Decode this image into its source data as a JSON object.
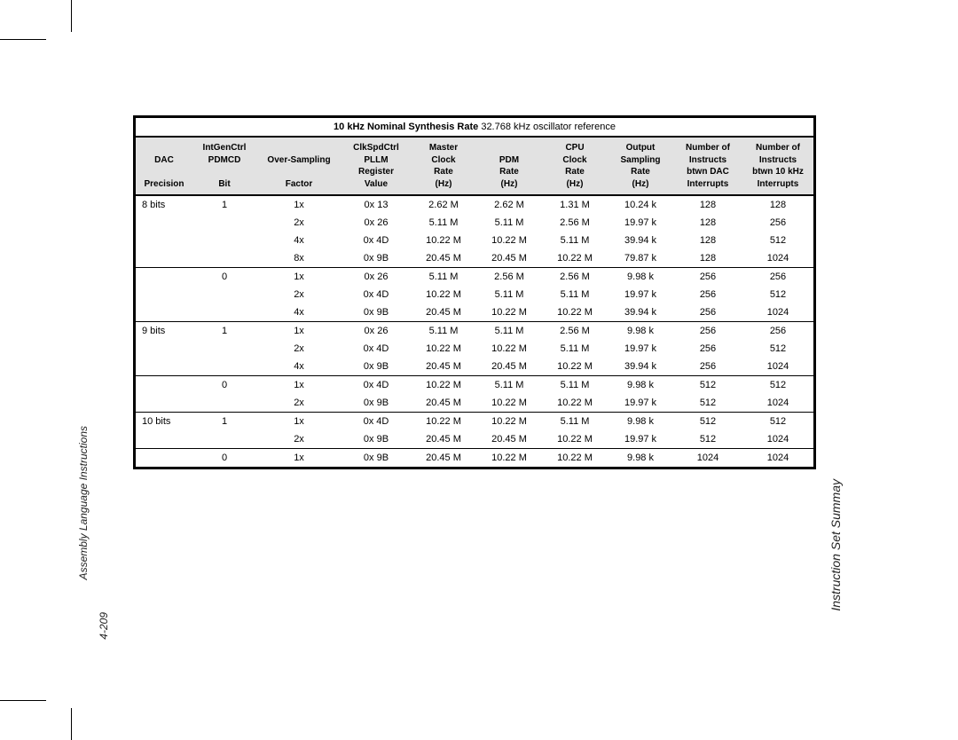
{
  "page": {
    "section_title": "Instruction Set Summay",
    "chapter_title": "Assembly Language Instructions",
    "page_number": "4-209"
  },
  "table": {
    "title_bold": "10 kHz Nominal Synthesis Rate",
    "title_rest": " 32.768 kHz oscillator reference",
    "header_lines": [
      [
        "",
        "IntGenCtrl",
        "",
        "ClkSpdCtrl",
        "Master",
        "",
        "CPU",
        "Output",
        "Number of",
        "Number of"
      ],
      [
        "DAC",
        "PDMCD",
        "Over-Sampling",
        "PLLM",
        "Clock",
        "PDM",
        "Clock",
        "Sampling",
        "Instructs",
        "Instructs"
      ],
      [
        "",
        "",
        "",
        "Register",
        "Rate",
        "Rate",
        "Rate",
        "Rate",
        "btwn DAC",
        "btwn 10 kHz"
      ],
      [
        "Precision",
        "Bit",
        "Factor",
        "Value",
        "(Hz)",
        "(Hz)",
        "(Hz)",
        "(Hz)",
        "Interrupts",
        "Interrupts"
      ]
    ],
    "groups": [
      {
        "precision": "8 bits",
        "subgroups": [
          {
            "pdmcd": "1",
            "rows": [
              [
                "1x",
                "0x 13",
                "2.62 M",
                "2.62 M",
                "1.31 M",
                "10.24 k",
                "128",
                "128"
              ],
              [
                "2x",
                "0x 26",
                "5.11 M",
                "5.11 M",
                "2.56 M",
                "19.97 k",
                "128",
                "256"
              ],
              [
                "4x",
                "0x 4D",
                "10.22 M",
                "10.22 M",
                "5.11 M",
                "39.94 k",
                "128",
                "512"
              ],
              [
                "8x",
                "0x 9B",
                "20.45 M",
                "20.45 M",
                "10.22 M",
                "79.87 k",
                "128",
                "1024"
              ]
            ]
          },
          {
            "pdmcd": "0",
            "rows": [
              [
                "1x",
                "0x 26",
                "5.11 M",
                "2.56 M",
                "2.56 M",
                "9.98 k",
                "256",
                "256"
              ],
              [
                "2x",
                "0x 4D",
                "10.22 M",
                "5.11 M",
                "5.11 M",
                "19.97 k",
                "256",
                "512"
              ],
              [
                "4x",
                "0x 9B",
                "20.45 M",
                "10.22 M",
                "10.22 M",
                "39.94 k",
                "256",
                "1024"
              ]
            ]
          }
        ]
      },
      {
        "precision": "9 bits",
        "subgroups": [
          {
            "pdmcd": "1",
            "rows": [
              [
                "1x",
                "0x 26",
                "5.11 M",
                "5.11 M",
                "2.56 M",
                "9.98 k",
                "256",
                "256"
              ],
              [
                "2x",
                "0x 4D",
                "10.22 M",
                "10.22 M",
                "5.11 M",
                "19.97 k",
                "256",
                "512"
              ],
              [
                "4x",
                "0x 9B",
                "20.45 M",
                "20.45 M",
                "10.22 M",
                "39.94 k",
                "256",
                "1024"
              ]
            ]
          },
          {
            "pdmcd": "0",
            "rows": [
              [
                "1x",
                "0x 4D",
                "10.22 M",
                "5.11 M",
                "5.11 M",
                "9.98 k",
                "512",
                "512"
              ],
              [
                "2x",
                "0x 9B",
                "20.45 M",
                "10.22 M",
                "10.22 M",
                "19.97 k",
                "512",
                "1024"
              ]
            ]
          }
        ]
      },
      {
        "precision": "10 bits",
        "subgroups": [
          {
            "pdmcd": "1",
            "rows": [
              [
                "1x",
                "0x 4D",
                "10.22 M",
                "10.22 M",
                "5.11 M",
                "9.98 k",
                "512",
                "512"
              ],
              [
                "2x",
                "0x 9B",
                "20.45 M",
                "20.45 M",
                "10.22 M",
                "19.97 k",
                "512",
                "1024"
              ]
            ]
          },
          {
            "pdmcd": "0",
            "rows": [
              [
                "1x",
                "0x 9B",
                "20.45 M",
                "10.22 M",
                "10.22 M",
                "9.98 k",
                "1024",
                "1024"
              ]
            ]
          }
        ]
      }
    ]
  }
}
